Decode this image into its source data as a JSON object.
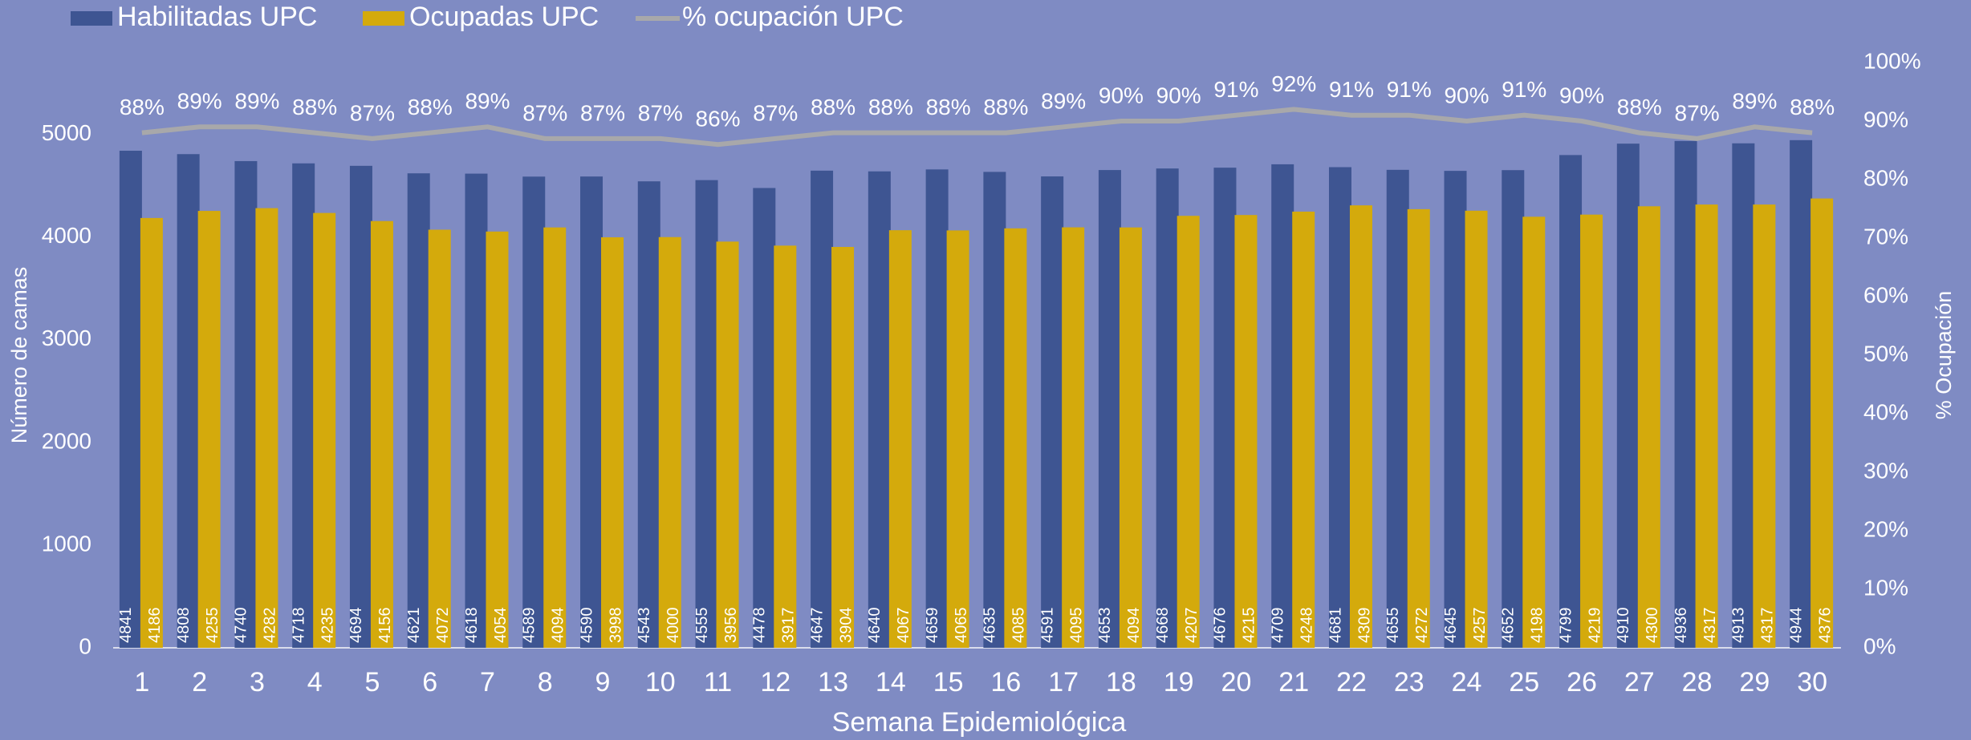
{
  "chart_data": {
    "type": "bar",
    "xlabel": "Semana Epidemiológica",
    "ylabel": "Número de camas",
    "y2label": "% Ocupación",
    "categories": [
      "1",
      "2",
      "3",
      "4",
      "5",
      "6",
      "7",
      "8",
      "9",
      "10",
      "11",
      "12",
      "13",
      "14",
      "15",
      "16",
      "17",
      "18",
      "19",
      "20",
      "21",
      "22",
      "23",
      "24",
      "25",
      "26",
      "27",
      "28",
      "29",
      "30"
    ],
    "series": [
      {
        "name": "Habilitadas UPC",
        "color": "#3e5592",
        "values": [
          4841,
          4808,
          4740,
          4718,
          4694,
          4621,
          4618,
          4589,
          4590,
          4543,
          4555,
          4478,
          4647,
          4640,
          4659,
          4635,
          4591,
          4653,
          4668,
          4676,
          4709,
          4681,
          4655,
          4645,
          4652,
          4799,
          4910,
          4936,
          4913,
          4944
        ]
      },
      {
        "name": "Ocupadas UPC",
        "color": "#d4aa0c",
        "values": [
          4186,
          4255,
          4282,
          4235,
          4156,
          4072,
          4054,
          4094,
          3998,
          4000,
          3956,
          3917,
          3904,
          4067,
          4065,
          4085,
          4095,
          4094,
          4207,
          4215,
          4248,
          4309,
          4272,
          4257,
          4198,
          4219,
          4300,
          4317,
          4317,
          4376
        ]
      },
      {
        "name": "% ocupación UPC",
        "color": "#a8a8aa",
        "axis": "y2",
        "type": "line",
        "values": [
          88,
          89,
          89,
          88,
          87,
          88,
          89,
          87,
          87,
          87,
          86,
          87,
          88,
          88,
          88,
          88,
          89,
          90,
          90,
          91,
          92,
          91,
          91,
          90,
          91,
          90,
          88,
          87,
          89,
          88
        ],
        "value_labels": [
          "88%",
          "89%",
          "89%",
          "88%",
          "87%",
          "88%",
          "89%",
          "87%",
          "87%",
          "87%",
          "86%",
          "87%",
          "88%",
          "88%",
          "88%",
          "88%",
          "89%",
          "90%",
          "90%",
          "91%",
          "92%",
          "91%",
          "91%",
          "90%",
          "91%",
          "90%",
          "88%",
          "87%",
          "89%",
          "88%"
        ]
      }
    ],
    "ylim": [
      0,
      5700
    ],
    "yticks": [
      0,
      1000,
      2000,
      3000,
      4000,
      5000
    ],
    "y2lim": [
      0,
      100
    ],
    "y2ticks": [
      {
        "value": 0,
        "label": "0%"
      },
      {
        "value": 10,
        "label": "10%"
      },
      {
        "value": 20,
        "label": "20%"
      },
      {
        "value": 30,
        "label": "30%"
      },
      {
        "value": 40,
        "label": "40%"
      },
      {
        "value": 50,
        "label": "50%"
      },
      {
        "value": 60,
        "label": "60%"
      },
      {
        "value": 70,
        "label": "70%"
      },
      {
        "value": 80,
        "label": "80%"
      },
      {
        "value": 90,
        "label": "90%"
      },
      {
        "value": 100,
        "label": "100%"
      }
    ],
    "legend": "top-left"
  }
}
